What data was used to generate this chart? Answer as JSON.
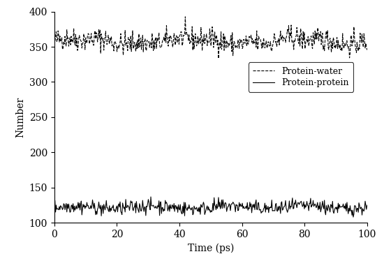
{
  "title": "",
  "xlabel": "Time (ps)",
  "ylabel": "Number",
  "xlim": [
    0,
    100
  ],
  "ylim": [
    100,
    400
  ],
  "yticks": [
    100,
    150,
    200,
    250,
    300,
    350,
    400
  ],
  "xticks": [
    0,
    20,
    40,
    60,
    80,
    100
  ],
  "legend_labels": [
    "Protein-water",
    "Protein-protein"
  ],
  "legend_linestyles": [
    "--",
    "-"
  ],
  "pw_mean": 358,
  "pw_std": 8,
  "pp_mean": 122,
  "pp_std": 5,
  "n_points": 500,
  "seed": 42,
  "line_color": "#000000",
  "linewidth": 0.8,
  "figsize": [
    5.5,
    3.74
  ],
  "dpi": 100
}
